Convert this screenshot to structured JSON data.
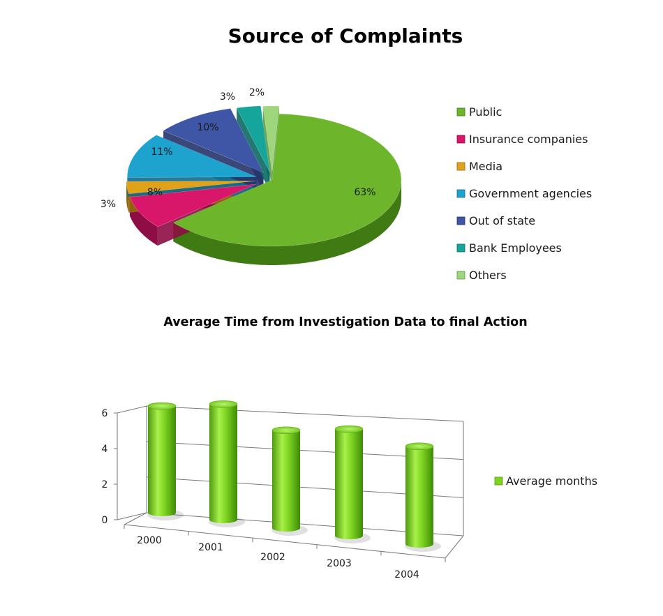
{
  "chart_data": [
    {
      "type": "pie",
      "title": "Source of Complaints",
      "legend_position": "right",
      "slices": [
        {
          "label": "Public",
          "value": 63,
          "data_label": "63%",
          "color": "#6DB62C",
          "dark": "#3F7A12"
        },
        {
          "label": "Insurance companies",
          "value": 8,
          "data_label": "8%",
          "color": "#D8176A",
          "dark": "#8E0D44"
        },
        {
          "label": "Media",
          "value": 3,
          "data_label": "3%",
          "color": "#E0A21A",
          "dark": "#94680B"
        },
        {
          "label": "Government agencies",
          "value": 11,
          "data_label": "11%",
          "color": "#1EA2CE",
          "dark": "#106C8C"
        },
        {
          "label": "Out of state",
          "value": 10,
          "data_label": "10%",
          "color": "#3F55A5",
          "dark": "#25336A"
        },
        {
          "label": "Bank Employees",
          "value": 3,
          "data_label": "3%",
          "color": "#15A59A",
          "dark": "#0B6A63"
        },
        {
          "label": "Others",
          "value": 2,
          "data_label": "2%",
          "color": "#9ED67E",
          "dark": "#5E9A43"
        }
      ]
    },
    {
      "type": "bar",
      "title": "Average Time from Investigation Data to final Action",
      "categories": [
        "2000",
        "2001",
        "2002",
        "2003",
        "2004"
      ],
      "series": [
        {
          "name": "Average months",
          "values": [
            6,
            6.5,
            5.5,
            6,
            5.5
          ],
          "color": "#7ED321"
        }
      ],
      "ylim": [
        0,
        6
      ],
      "yticks": [
        "0",
        "2",
        "4",
        "6"
      ],
      "grid": true,
      "legend_position": "right"
    }
  ]
}
